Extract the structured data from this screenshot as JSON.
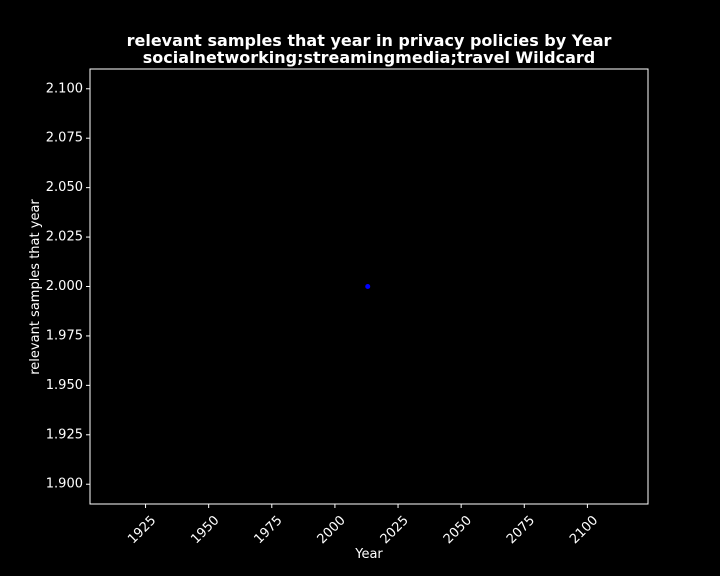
{
  "chart_data": {
    "type": "scatter",
    "title": "relevant samples that year in privacy policies by Year",
    "subtitle": "socialnetworking;streamingmedia;travel Wildcard",
    "xlabel": "Year",
    "ylabel": "relevant samples that year",
    "xlim": [
      1903,
      2124
    ],
    "ylim": [
      1.89,
      2.11
    ],
    "xticks": [
      1925,
      1950,
      1975,
      2000,
      2025,
      2050,
      2075,
      2100
    ],
    "xtick_labels": [
      "1925",
      "1950",
      "1975",
      "2000",
      "2025",
      "2050",
      "2075",
      "2100"
    ],
    "yticks": [
      1.9,
      1.925,
      1.95,
      1.975,
      2.0,
      2.025,
      2.05,
      2.075,
      2.1
    ],
    "ytick_labels": [
      "1.900",
      "1.925",
      "1.950",
      "1.975",
      "2.000",
      "2.025",
      "2.050",
      "2.075",
      "2.100"
    ],
    "grid": false,
    "background": "#000000",
    "foreground": "#ffffff",
    "point_color": "#0000ff",
    "points": [
      {
        "x": 2013,
        "y": 2.0
      }
    ]
  }
}
